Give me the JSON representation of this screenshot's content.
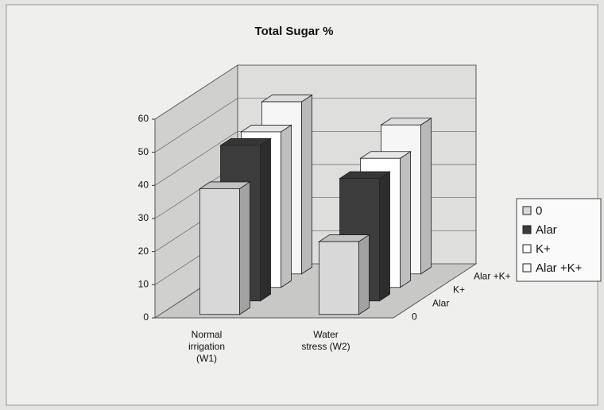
{
  "chart_data": {
    "type": "bar3d",
    "title": "Total Sugar %",
    "categories": [
      "Normal irrigation (W1)",
      "Water stress (W2)"
    ],
    "series": [
      {
        "name": "0",
        "color": "#d8d8d8",
        "values": [
          38,
          22
        ]
      },
      {
        "name": "Alar",
        "color": "#3c3c3c",
        "values": [
          47,
          37
        ]
      },
      {
        "name": "K+",
        "color": "#ffffff",
        "values": [
          47,
          39
        ]
      },
      {
        "name": "Alar +K+",
        "color": "#f6f6f6",
        "values": [
          52,
          45
        ]
      }
    ],
    "ylim": [
      0,
      60
    ],
    "yticks": [
      0,
      10,
      20,
      30,
      40,
      50,
      60
    ],
    "grid": true,
    "legend": "right"
  }
}
